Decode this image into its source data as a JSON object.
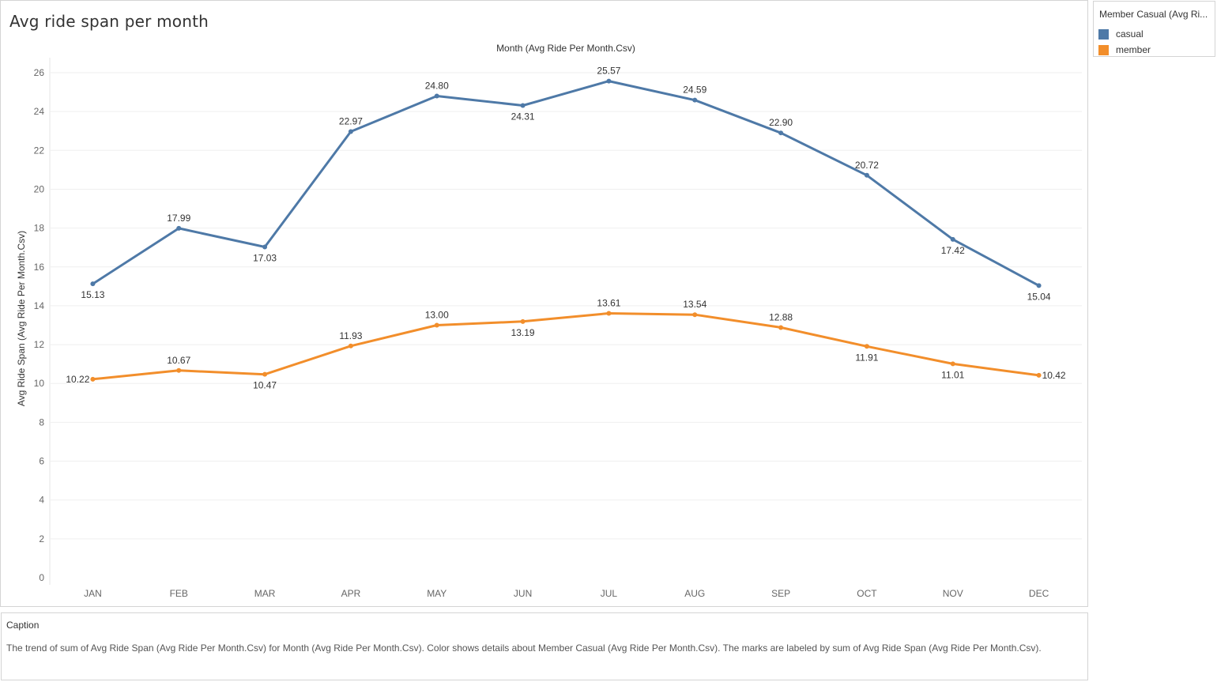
{
  "sheet_title": "Avg ride span per month",
  "legend": {
    "title": "Member Casual (Avg Ri...",
    "items": [
      {
        "label": "casual",
        "color": "#4e79a7"
      },
      {
        "label": "member",
        "color": "#f28e2b"
      }
    ]
  },
  "caption": {
    "title": "Caption",
    "text": "The trend of sum of Avg Ride Span (Avg Ride Per Month.Csv) for Month (Avg Ride Per Month.Csv).  Color shows details about Member Casual (Avg Ride Per Month.Csv).  The marks are labeled by sum of Avg Ride Span (Avg Ride Per Month.Csv)."
  },
  "chart_data": {
    "type": "line",
    "xlabel": "Month (Avg Ride Per Month.Csv)",
    "ylabel": "Avg Ride Span (Avg Ride Per Month.Csv)",
    "categories": [
      "JAN",
      "FEB",
      "MAR",
      "APR",
      "MAY",
      "JUN",
      "JUL",
      "AUG",
      "SEP",
      "OCT",
      "NOV",
      "DEC"
    ],
    "ylim": [
      0,
      26
    ],
    "yticks": [
      0,
      2,
      4,
      6,
      8,
      10,
      12,
      14,
      16,
      18,
      20,
      22,
      24,
      26
    ],
    "grid": true,
    "legend_position": "top-right",
    "series": [
      {
        "name": "casual",
        "color": "#4e79a7",
        "values": [
          15.13,
          17.99,
          17.03,
          22.97,
          24.8,
          24.31,
          25.57,
          24.59,
          22.9,
          20.72,
          17.42,
          15.04
        ],
        "label_positions": [
          "below",
          "above",
          "below",
          "above",
          "above",
          "below",
          "above",
          "above",
          "above",
          "above",
          "below",
          "below"
        ]
      },
      {
        "name": "member",
        "color": "#f28e2b",
        "values": [
          10.22,
          10.67,
          10.47,
          11.93,
          13.0,
          13.19,
          13.61,
          13.54,
          12.88,
          11.91,
          11.01,
          10.42
        ],
        "label_positions": [
          "left",
          "above",
          "below",
          "above",
          "above",
          "below",
          "above",
          "above",
          "above",
          "below",
          "below",
          "right"
        ]
      }
    ]
  }
}
